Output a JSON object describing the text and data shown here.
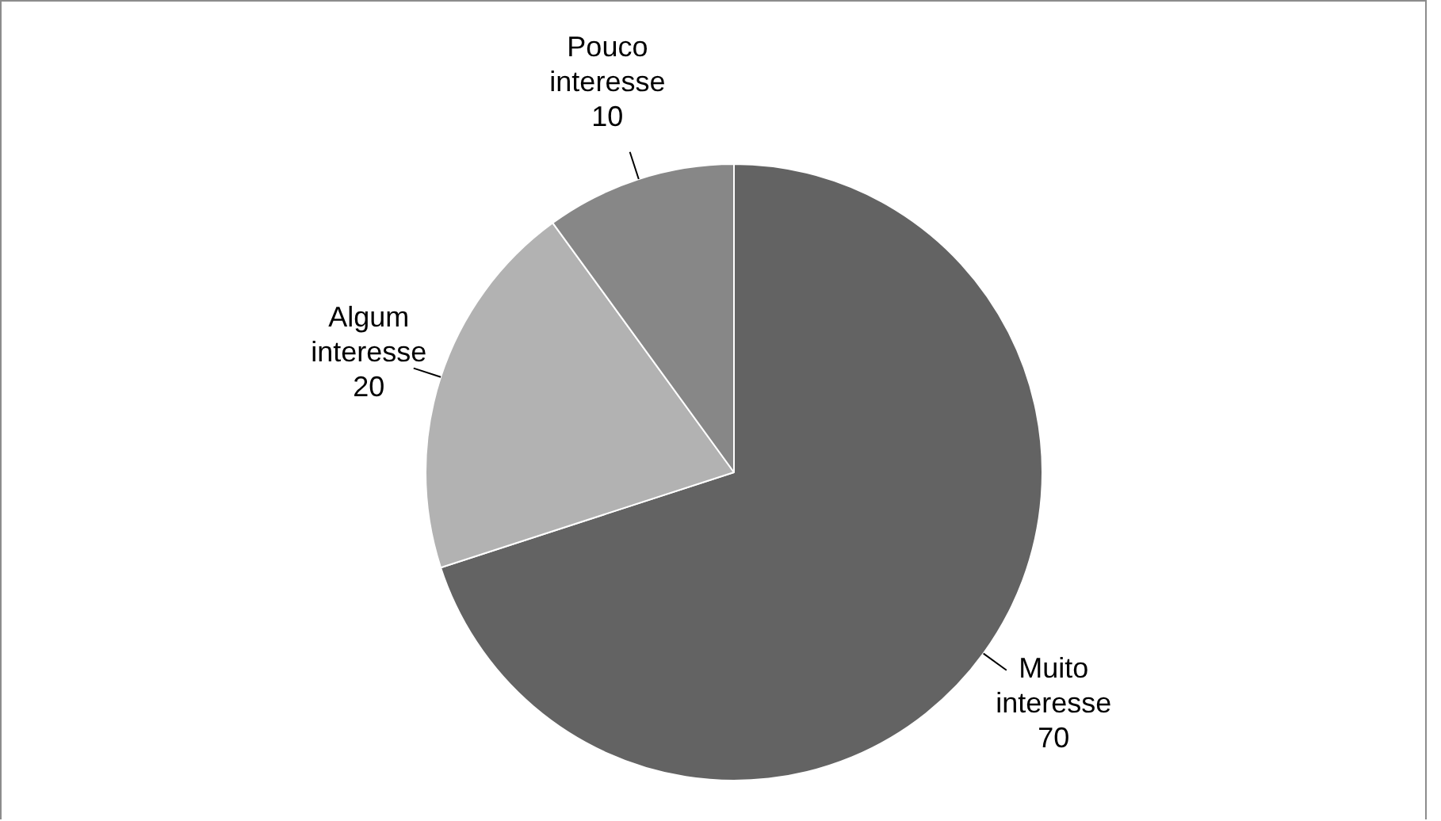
{
  "chart_data": {
    "type": "pie",
    "categories": [
      "Muito interesse",
      "Algum interesse",
      "Pouco interesse"
    ],
    "values": [
      70,
      20,
      10
    ],
    "colors": [
      "#636363",
      "#b2b2b2",
      "#878787"
    ],
    "data_labels": true,
    "legend": false
  }
}
